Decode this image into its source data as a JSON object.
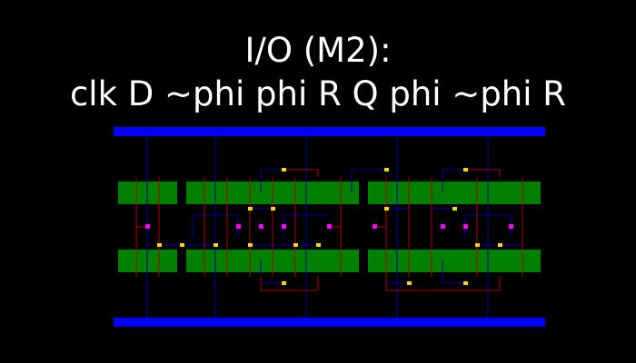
{
  "title": {
    "line1": "I/O (M2):",
    "line2": "clk D ~phi phi R Q phi ~phi R"
  },
  "colors": {
    "background": "#000000",
    "text": "#ffffff",
    "power_rail": "#0000ff",
    "diffusion": "#008000",
    "poly": "#b00000",
    "metal": "#0000a0",
    "contact": "#ffd700",
    "pin": "#ff00ff"
  }
}
